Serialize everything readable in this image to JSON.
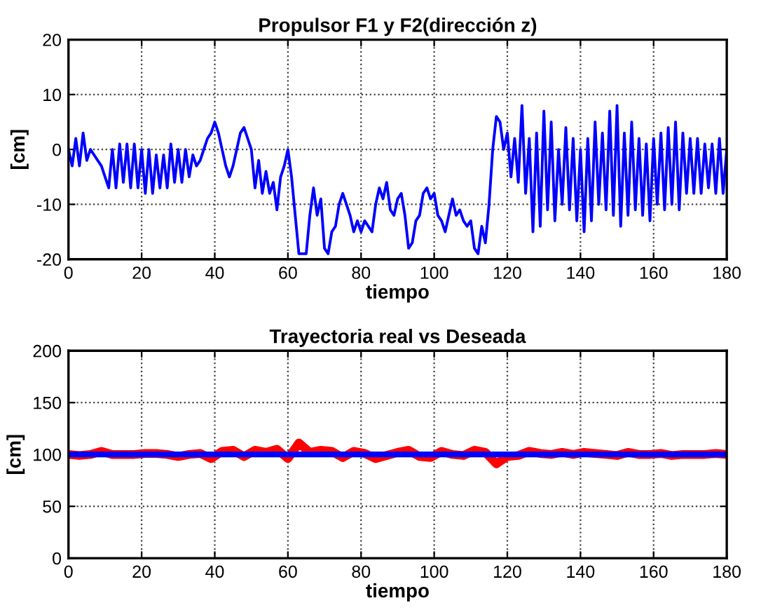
{
  "chart_data": [
    {
      "type": "line",
      "title": "Propulsor F1 y F2(dirección z)",
      "xlabel": "tiempo",
      "ylabel": "[cm]",
      "xlim": [
        0,
        180
      ],
      "ylim": [
        -20,
        20
      ],
      "xticks": [
        0,
        20,
        40,
        60,
        80,
        100,
        120,
        140,
        160,
        180
      ],
      "yticks": [
        -20,
        -10,
        0,
        10,
        20
      ],
      "grid": true,
      "series": [
        {
          "color": "#0000ff",
          "x": [
            0,
            1,
            2,
            3,
            4,
            5,
            6,
            7,
            8,
            9,
            10,
            11,
            12,
            13,
            14,
            15,
            16,
            17,
            18,
            19,
            20,
            21,
            22,
            23,
            24,
            25,
            26,
            27,
            28,
            29,
            30,
            31,
            32,
            33,
            34,
            35,
            36,
            37,
            38,
            39,
            40,
            41,
            42,
            43,
            44,
            45,
            46,
            47,
            48,
            49,
            50,
            51,
            52,
            53,
            54,
            55,
            56,
            57,
            58,
            59,
            60,
            61,
            62,
            63,
            65,
            66,
            67,
            68,
            69,
            70,
            71,
            72,
            73,
            74,
            75,
            76,
            77,
            78,
            79,
            80,
            81,
            82,
            83,
            84,
            85,
            86,
            87,
            88,
            89,
            90,
            91,
            92,
            93,
            94,
            95,
            96,
            97,
            98,
            99,
            100,
            101,
            102,
            103,
            104,
            105,
            106,
            107,
            108,
            109,
            110,
            111,
            112,
            113,
            114,
            115,
            116,
            117,
            118,
            119,
            120,
            121,
            122,
            123,
            124,
            125,
            126,
            127,
            128,
            129,
            130,
            131,
            132,
            133,
            134,
            135,
            136,
            137,
            138,
            139,
            140,
            141,
            142,
            143,
            144,
            145,
            146,
            147,
            148,
            149,
            150,
            151,
            152,
            153,
            154,
            155,
            156,
            157,
            158,
            159,
            160,
            161,
            162,
            163,
            164,
            165,
            166,
            167,
            168,
            169,
            170,
            171,
            172,
            173,
            174,
            175,
            176,
            177,
            178,
            179,
            180
          ],
          "values": [
            0,
            -3,
            2,
            -3,
            3,
            -2,
            0,
            -1,
            -2,
            -3,
            -5,
            -7,
            0,
            -7,
            1,
            -6,
            1,
            -7,
            1,
            -7,
            0,
            -8,
            0,
            -8,
            -1,
            -7,
            -1,
            -7,
            1,
            -6,
            0,
            -6,
            0,
            -5,
            -1,
            -3,
            -2,
            0,
            2,
            3,
            5,
            3,
            0,
            -3,
            -5,
            -3,
            0,
            3,
            4,
            2,
            0,
            -7,
            -2,
            -8,
            -4,
            -8,
            -6,
            -11,
            -5,
            -3,
            0,
            -5,
            -12,
            -19,
            -19,
            -12,
            -7,
            -12,
            -9,
            -18,
            -19,
            -15,
            -14,
            -10,
            -8,
            -10,
            -12,
            -15,
            -13,
            -15,
            -13,
            -14,
            -15,
            -10,
            -7,
            -9,
            -6,
            -11,
            -12,
            -9,
            -8,
            -12,
            -18,
            -17,
            -13,
            -12,
            -8,
            -7,
            -9,
            -8,
            -12,
            -13,
            -15,
            -12,
            -9,
            -12,
            -11,
            -13,
            -14,
            -13,
            -18,
            -19,
            -14,
            -17,
            -10,
            0,
            6,
            5,
            0,
            3,
            -5,
            2,
            -6,
            8,
            -8,
            2,
            -15,
            3,
            -14,
            7,
            -11,
            5,
            -13,
            0,
            -10,
            4,
            -11,
            2,
            -13,
            0,
            -15,
            2,
            -13,
            5,
            -10,
            3,
            -11,
            7,
            -12,
            8,
            -14,
            3,
            -12,
            5,
            -11,
            2,
            -12,
            1,
            -13,
            2,
            -10,
            3,
            -11,
            4,
            -10,
            5,
            -11,
            3,
            -8,
            2,
            -8,
            2,
            -8,
            1,
            -7,
            1,
            -8,
            2,
            -8,
            0
          ]
        }
      ]
    },
    {
      "type": "line",
      "title": "Trayectoria real vs Deseada",
      "xlabel": "tiempo",
      "ylabel": "[cm]",
      "xlim": [
        0,
        180
      ],
      "ylim": [
        0,
        200
      ],
      "xticks": [
        0,
        20,
        40,
        60,
        80,
        100,
        120,
        140,
        160,
        180
      ],
      "yticks": [
        0,
        50,
        100,
        150,
        200
      ],
      "grid": true,
      "series": [
        {
          "color": "#ff0000",
          "x": [
            0,
            3,
            6,
            9,
            12,
            15,
            18,
            21,
            24,
            27,
            30,
            33,
            36,
            39,
            42,
            45,
            48,
            51,
            54,
            57,
            60,
            63,
            66,
            69,
            72,
            75,
            78,
            81,
            84,
            87,
            90,
            93,
            96,
            99,
            102,
            105,
            108,
            111,
            114,
            117,
            120,
            123,
            126,
            129,
            132,
            135,
            138,
            141,
            144,
            147,
            150,
            153,
            156,
            159,
            162,
            165,
            168,
            171,
            174,
            177,
            180
          ],
          "values": [
            100,
            99,
            100,
            103,
            100,
            100,
            100,
            101,
            101,
            100,
            98,
            100,
            101,
            96,
            103,
            104,
            98,
            104,
            102,
            105,
            96,
            111,
            102,
            104,
            103,
            97,
            103,
            101,
            96,
            99,
            102,
            104,
            98,
            97,
            103,
            100,
            99,
            104,
            102,
            91,
            98,
            99,
            103,
            101,
            100,
            102,
            100,
            102,
            101,
            100,
            99,
            102,
            100,
            100,
            101,
            99,
            100,
            100,
            100,
            101,
            100
          ]
        },
        {
          "color": "#0000ff",
          "x": [
            0,
            180
          ],
          "values": [
            100,
            100
          ]
        }
      ]
    }
  ]
}
